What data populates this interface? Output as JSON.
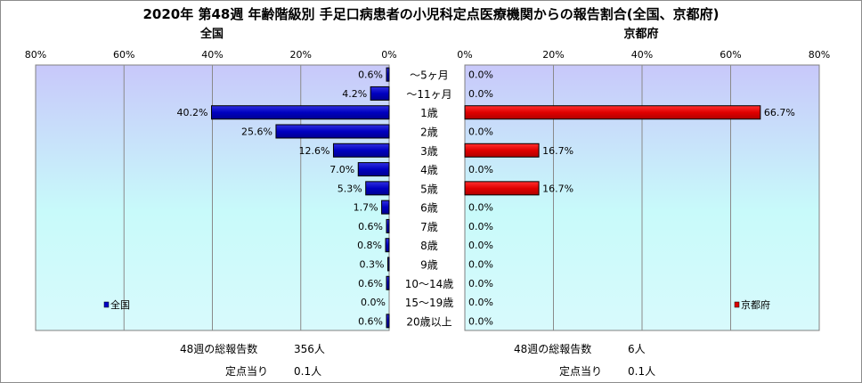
{
  "title": "2020年 第48週 年齢階級別 手足口病患者の小児科定点医療機関からの報告割合(全国、京都府)",
  "chart_data": [
    {
      "type": "bar",
      "orientation": "horizontal",
      "subtitle": "全国",
      "legend": "全国",
      "legend_position": "bottom-left",
      "xlim": [
        0,
        80
      ],
      "ticks": [
        "80%",
        "60%",
        "40%",
        "20%",
        "0%"
      ],
      "categories": [
        "〜5ヶ月",
        "〜11ヶ月",
        "1歳",
        "2歳",
        "3歳",
        "4歳",
        "5歳",
        "6歳",
        "7歳",
        "8歳",
        "9歳",
        "10〜14歳",
        "15〜19歳",
        "20歳以上"
      ],
      "values": [
        0.6,
        4.2,
        40.2,
        25.6,
        12.6,
        7.0,
        5.3,
        1.7,
        0.6,
        0.8,
        0.3,
        0.6,
        0.0,
        0.6
      ],
      "labels": [
        "0.6%",
        "4.2%",
        "40.2%",
        "25.6%",
        "12.6%",
        "7.0%",
        "5.3%",
        "1.7%",
        "0.6%",
        "0.8%",
        "0.3%",
        "0.6%",
        "0.0%",
        "0.6%"
      ],
      "color": "#0000c8"
    },
    {
      "type": "bar",
      "orientation": "horizontal",
      "subtitle": "京都府",
      "legend": "京都府",
      "legend_position": "bottom-right",
      "xlim": [
        0,
        80
      ],
      "ticks": [
        "0%",
        "20%",
        "40%",
        "60%",
        "80%"
      ],
      "categories": [
        "〜5ヶ月",
        "〜11ヶ月",
        "1歳",
        "2歳",
        "3歳",
        "4歳",
        "5歳",
        "6歳",
        "7歳",
        "8歳",
        "9歳",
        "10〜14歳",
        "15〜19歳",
        "20歳以上"
      ],
      "values": [
        0.0,
        0.0,
        66.7,
        0.0,
        16.7,
        0.0,
        16.7,
        0.0,
        0.0,
        0.0,
        0.0,
        0.0,
        0.0,
        0.0
      ],
      "labels": [
        "0.0%",
        "0.0%",
        "66.7%",
        "0.0%",
        "16.7%",
        "0.0%",
        "16.7%",
        "0.0%",
        "0.0%",
        "0.0%",
        "0.0%",
        "0.0%",
        "0.0%",
        "0.0%"
      ],
      "color": "#dc0000"
    }
  ],
  "footer": {
    "national": {
      "total_label": "48週の総報告数",
      "total_value": "356人",
      "per_label": "定点当り",
      "per_value": "0.1人"
    },
    "kyoto": {
      "total_label": "48週の総報告数",
      "total_value": "6人",
      "per_label": "定点当り",
      "per_value": "0.1人"
    }
  }
}
